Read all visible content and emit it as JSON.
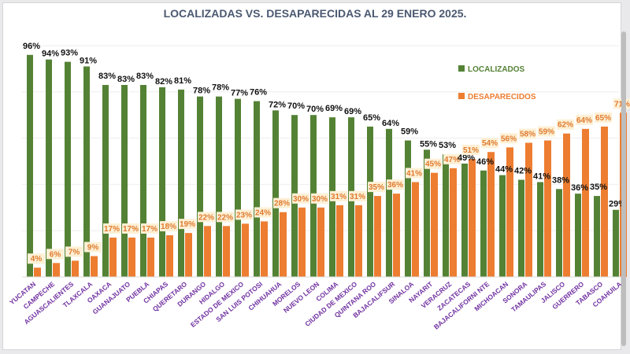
{
  "chart_data": {
    "type": "bar",
    "title": "LOCALIZADAS VS. DESAPARECIDAS AL 29 ENERO 2025.",
    "categories": [
      "YUCATAN",
      "CAMPECHE",
      "AGUASCALIENTES",
      "TLAXCALA",
      "OAXACA",
      "GUANAJUATO",
      "PUEBLA",
      "CHIAPAS",
      "QUERETARO",
      "DURANGO",
      "HIDALGO",
      "ESTADO DE MEXICO",
      "SAN LUIS POTOSI",
      "CHIHUAHUA",
      "MORELOS",
      "NUEVO LEON",
      "COLIMA",
      "CIUDAD DE MEXICO",
      "QUINTANA ROO",
      "BAJACALIFSUR",
      "SINALOA",
      "NAYARIT",
      "VERACRUZ",
      "ZACATECAS",
      "BAJACALIFORNI NTE",
      "MICHOACAN",
      "SONORA",
      "TAMAULIPAS",
      "JALISCO",
      "GUERRERO",
      "TABASCO",
      "COAHUILA"
    ],
    "series": [
      {
        "name": "LOCALIZADOS",
        "color": "#548235",
        "values": [
          96,
          94,
          93,
          91,
          83,
          83,
          83,
          82,
          81,
          78,
          78,
          77,
          76,
          72,
          70,
          70,
          69,
          69,
          65,
          64,
          59,
          55,
          53,
          49,
          46,
          44,
          42,
          41,
          38,
          36,
          35,
          29
        ]
      },
      {
        "name": "DESAPARECIDOS",
        "color": "#ed7d31",
        "values": [
          4,
          6,
          7,
          9,
          17,
          17,
          17,
          18,
          19,
          22,
          22,
          23,
          24,
          28,
          30,
          30,
          31,
          31,
          35,
          36,
          41,
          45,
          47,
          51,
          54,
          56,
          58,
          59,
          62,
          64,
          65,
          71
        ]
      }
    ],
    "unit": "%",
    "ylim": [
      0,
      100
    ],
    "grid": true,
    "legend": "right",
    "category_label_color": "#7030a0"
  }
}
